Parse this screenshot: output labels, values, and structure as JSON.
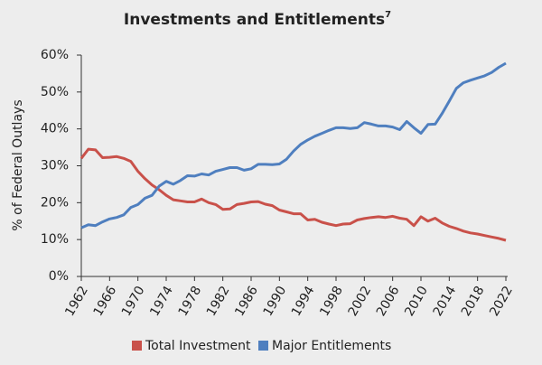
{
  "chart_data": {
    "type": "line",
    "title": "Investments and Entitlements",
    "title_footnote": "7",
    "y_label": "% of Federal Outlays",
    "x": [
      1962,
      1963,
      1964,
      1965,
      1966,
      1967,
      1968,
      1969,
      1970,
      1971,
      1972,
      1973,
      1974,
      1975,
      1976,
      1977,
      1978,
      1979,
      1980,
      1981,
      1982,
      1983,
      1984,
      1985,
      1986,
      1987,
      1988,
      1989,
      1990,
      1991,
      1992,
      1993,
      1994,
      1995,
      1996,
      1997,
      1998,
      1999,
      2000,
      2001,
      2002,
      2003,
      2004,
      2005,
      2006,
      2007,
      2008,
      2009,
      2010,
      2011,
      2012,
      2013,
      2014,
      2015,
      2016,
      2017,
      2018,
      2019,
      2020,
      2021,
      2022
    ],
    "series": [
      {
        "name": "Total Investment",
        "color": "#c9514a",
        "values": [
          32,
          34.5,
          34.3,
          32.2,
          32.3,
          32.5,
          32,
          31.2,
          28.5,
          26.5,
          24.8,
          23.5,
          22,
          20.8,
          20.5,
          20.2,
          20.2,
          21,
          20,
          19.5,
          18.2,
          18.3,
          19.5,
          19.8,
          20.2,
          20.3,
          19.6,
          19.2,
          18,
          17.5,
          17,
          17,
          15.3,
          15.5,
          14.7,
          14.2,
          13.8,
          14.2,
          14.3,
          15.3,
          15.7,
          16,
          16.2,
          16,
          16.3,
          15.8,
          15.5,
          13.8,
          16.2,
          15,
          15.8,
          14.5,
          13.6,
          13,
          12.3,
          11.8,
          11.5,
          11.1,
          10.7,
          10.3,
          9.8
        ]
      },
      {
        "name": "Major Entitlements",
        "color": "#4f7fbf",
        "values": [
          13.2,
          14,
          13.8,
          14.8,
          15.6,
          16,
          16.7,
          18.7,
          19.5,
          21.2,
          22,
          24.5,
          25.8,
          25,
          26,
          27.3,
          27.2,
          27.8,
          27.5,
          28.5,
          29,
          29.5,
          29.5,
          28.8,
          29.2,
          30.4,
          30.4,
          30.3,
          30.5,
          31.8,
          34,
          35.8,
          37,
          38,
          38.8,
          39.6,
          40.3,
          40.3,
          40.1,
          40.3,
          41.7,
          41.3,
          40.8,
          40.8,
          40.5,
          39.8,
          42,
          40.3,
          38.8,
          41.2,
          41.3,
          44.2,
          47.5,
          51,
          52.5,
          53.2,
          53.8,
          54.4,
          55.3,
          56.7,
          57.8
        ]
      }
    ],
    "xlim": [
      1962,
      2022
    ],
    "xticks": [
      1962,
      1966,
      1970,
      1974,
      1978,
      1982,
      1986,
      1990,
      1994,
      1998,
      2002,
      2006,
      2010,
      2014,
      2018,
      2022
    ],
    "ylim": [
      0,
      60
    ],
    "yticks": [
      {
        "value": 0,
        "label": "0%"
      },
      {
        "value": 10,
        "label": "10%"
      },
      {
        "value": 20,
        "label": "20%"
      },
      {
        "value": 30,
        "label": "30%"
      },
      {
        "value": 40,
        "label": "40%"
      },
      {
        "value": 50,
        "label": "50%"
      },
      {
        "value": 60,
        "label": "60%"
      }
    ],
    "grid": false
  }
}
